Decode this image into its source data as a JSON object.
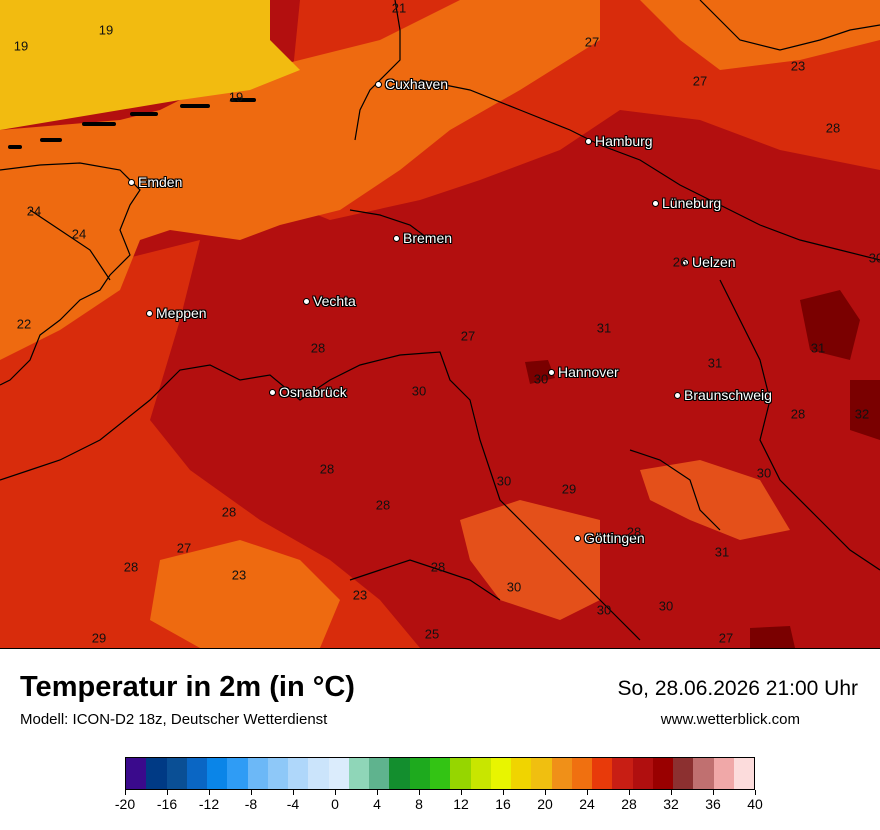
{
  "map": {
    "cities": [
      {
        "name": "Cuxhaven"
      },
      {
        "name": "Hamburg"
      },
      {
        "name": "Emden"
      },
      {
        "name": "Lüneburg"
      },
      {
        "name": "Bremen"
      },
      {
        "name": "Uelzen"
      },
      {
        "name": "Vechta"
      },
      {
        "name": "Meppen"
      },
      {
        "name": "Hannover"
      },
      {
        "name": "Osnabrück"
      },
      {
        "name": "Braunschweig"
      },
      {
        "name": "Göttingen"
      }
    ],
    "temperature_labels": [
      "21",
      "19",
      "19",
      "19",
      "27",
      "27",
      "23",
      "28",
      "24",
      "24",
      "22",
      "31",
      "28",
      "27",
      "31",
      "30",
      "31",
      "28",
      "32",
      "28",
      "30",
      "30",
      "29",
      "28",
      "28",
      "27",
      "28",
      "23",
      "28",
      "30",
      "31",
      "30",
      "30",
      "28",
      "25",
      "27",
      "29",
      "26",
      "23",
      "30",
      "30"
    ]
  },
  "footer": {
    "title": "Temperatur in 2m (in °C)",
    "subtitle": "Modell: ICON-D2 18z, Deutscher Wetterdienst",
    "datetime": "So, 28.06.2026 21:00 Uhr",
    "website": "www.wetterblick.com"
  },
  "legend": {
    "tick_labels": [
      "-20",
      "-16",
      "-12",
      "-8",
      "-4",
      "0",
      "4",
      "8",
      "12",
      "16",
      "20",
      "24",
      "28",
      "32",
      "36",
      "40"
    ],
    "colors": [
      "#3a0a8c",
      "#003a85",
      "#0a4f95",
      "#0a66c4",
      "#0a85e8",
      "#2f9cf5",
      "#6cb8f7",
      "#8ec8f8",
      "#afd7fa",
      "#cbe4fb",
      "#dbecfc",
      "#8fd6b8",
      "#5fb38e",
      "#138e2e",
      "#1eaa1e",
      "#33c414",
      "#96d600",
      "#c8e600",
      "#e8f500",
      "#f0d400",
      "#f0bf10",
      "#f09018",
      "#f07010",
      "#e83a0a",
      "#c81e14",
      "#b00f0f",
      "#990000",
      "#8c3030",
      "#c07070",
      "#f0a8a8",
      "#fcdcdc"
    ]
  }
}
